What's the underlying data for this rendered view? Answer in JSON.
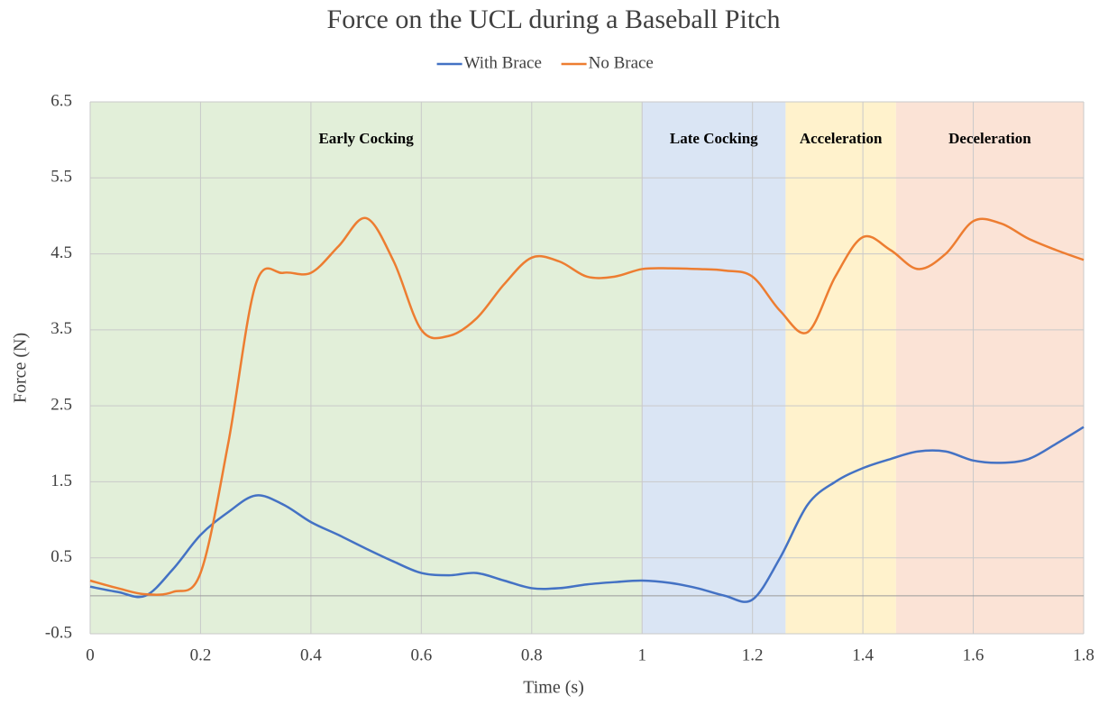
{
  "chart_data": {
    "type": "line",
    "title": "Force on the UCL during a Baseball Pitch",
    "x_label": "Time (s)",
    "y_label": "Force (N)",
    "x": [
      0,
      0.05,
      0.1,
      0.15,
      0.2,
      0.25,
      0.3,
      0.35,
      0.4,
      0.45,
      0.5,
      0.55,
      0.6,
      0.65,
      0.7,
      0.75,
      0.8,
      0.85,
      0.9,
      0.95,
      1.0,
      1.05,
      1.1,
      1.15,
      1.2,
      1.25,
      1.3,
      1.35,
      1.4,
      1.45,
      1.5,
      1.55,
      1.6,
      1.65,
      1.7,
      1.75,
      1.8
    ],
    "series": [
      {
        "name": "With Brace",
        "color": "#4472c4",
        "values": [
          0.12,
          0.05,
          0.0,
          0.35,
          0.8,
          1.1,
          1.32,
          1.2,
          0.97,
          0.8,
          0.62,
          0.45,
          0.3,
          0.27,
          0.3,
          0.2,
          0.1,
          0.1,
          0.15,
          0.18,
          0.2,
          0.17,
          0.1,
          0.0,
          -0.05,
          0.5,
          1.2,
          1.5,
          1.68,
          1.8,
          1.9,
          1.9,
          1.78,
          1.75,
          1.8,
          2.0,
          2.22
        ]
      },
      {
        "name": "No Brace",
        "color": "#ed7d31",
        "values": [
          0.2,
          0.1,
          0.02,
          0.05,
          0.3,
          2.0,
          4.1,
          4.25,
          4.25,
          4.6,
          4.97,
          4.4,
          3.5,
          3.42,
          3.65,
          4.1,
          4.45,
          4.4,
          4.2,
          4.2,
          4.3,
          4.31,
          4.3,
          4.28,
          4.2,
          3.75,
          3.47,
          4.2,
          4.72,
          4.55,
          4.3,
          4.5,
          4.93,
          4.9,
          4.7,
          4.55,
          4.42
        ]
      }
    ],
    "regions": [
      {
        "label": "Early Cocking",
        "start": 0,
        "end": 1.0,
        "color": "#e2efd9"
      },
      {
        "label": "Late Cocking",
        "start": 1.0,
        "end": 1.26,
        "color": "#dae5f4"
      },
      {
        "label": "Acceleration",
        "start": 1.26,
        "end": 1.46,
        "color": "#fff2cc"
      },
      {
        "label": "Deceleration",
        "start": 1.46,
        "end": 1.8,
        "color": "#fbe3d6"
      }
    ],
    "region_label_y": 6.0,
    "xlim": [
      0,
      1.8
    ],
    "xticks": [
      0,
      0.2,
      0.4,
      0.6,
      0.8,
      1,
      1.2,
      1.4,
      1.6,
      1.8
    ],
    "ylim": [
      -0.5,
      6.5
    ],
    "yticks": [
      -0.5,
      0.5,
      1.5,
      2.5,
      3.5,
      4.5,
      5.5,
      6.5
    ],
    "grid": true,
    "zero_line": true,
    "legend": "top"
  }
}
